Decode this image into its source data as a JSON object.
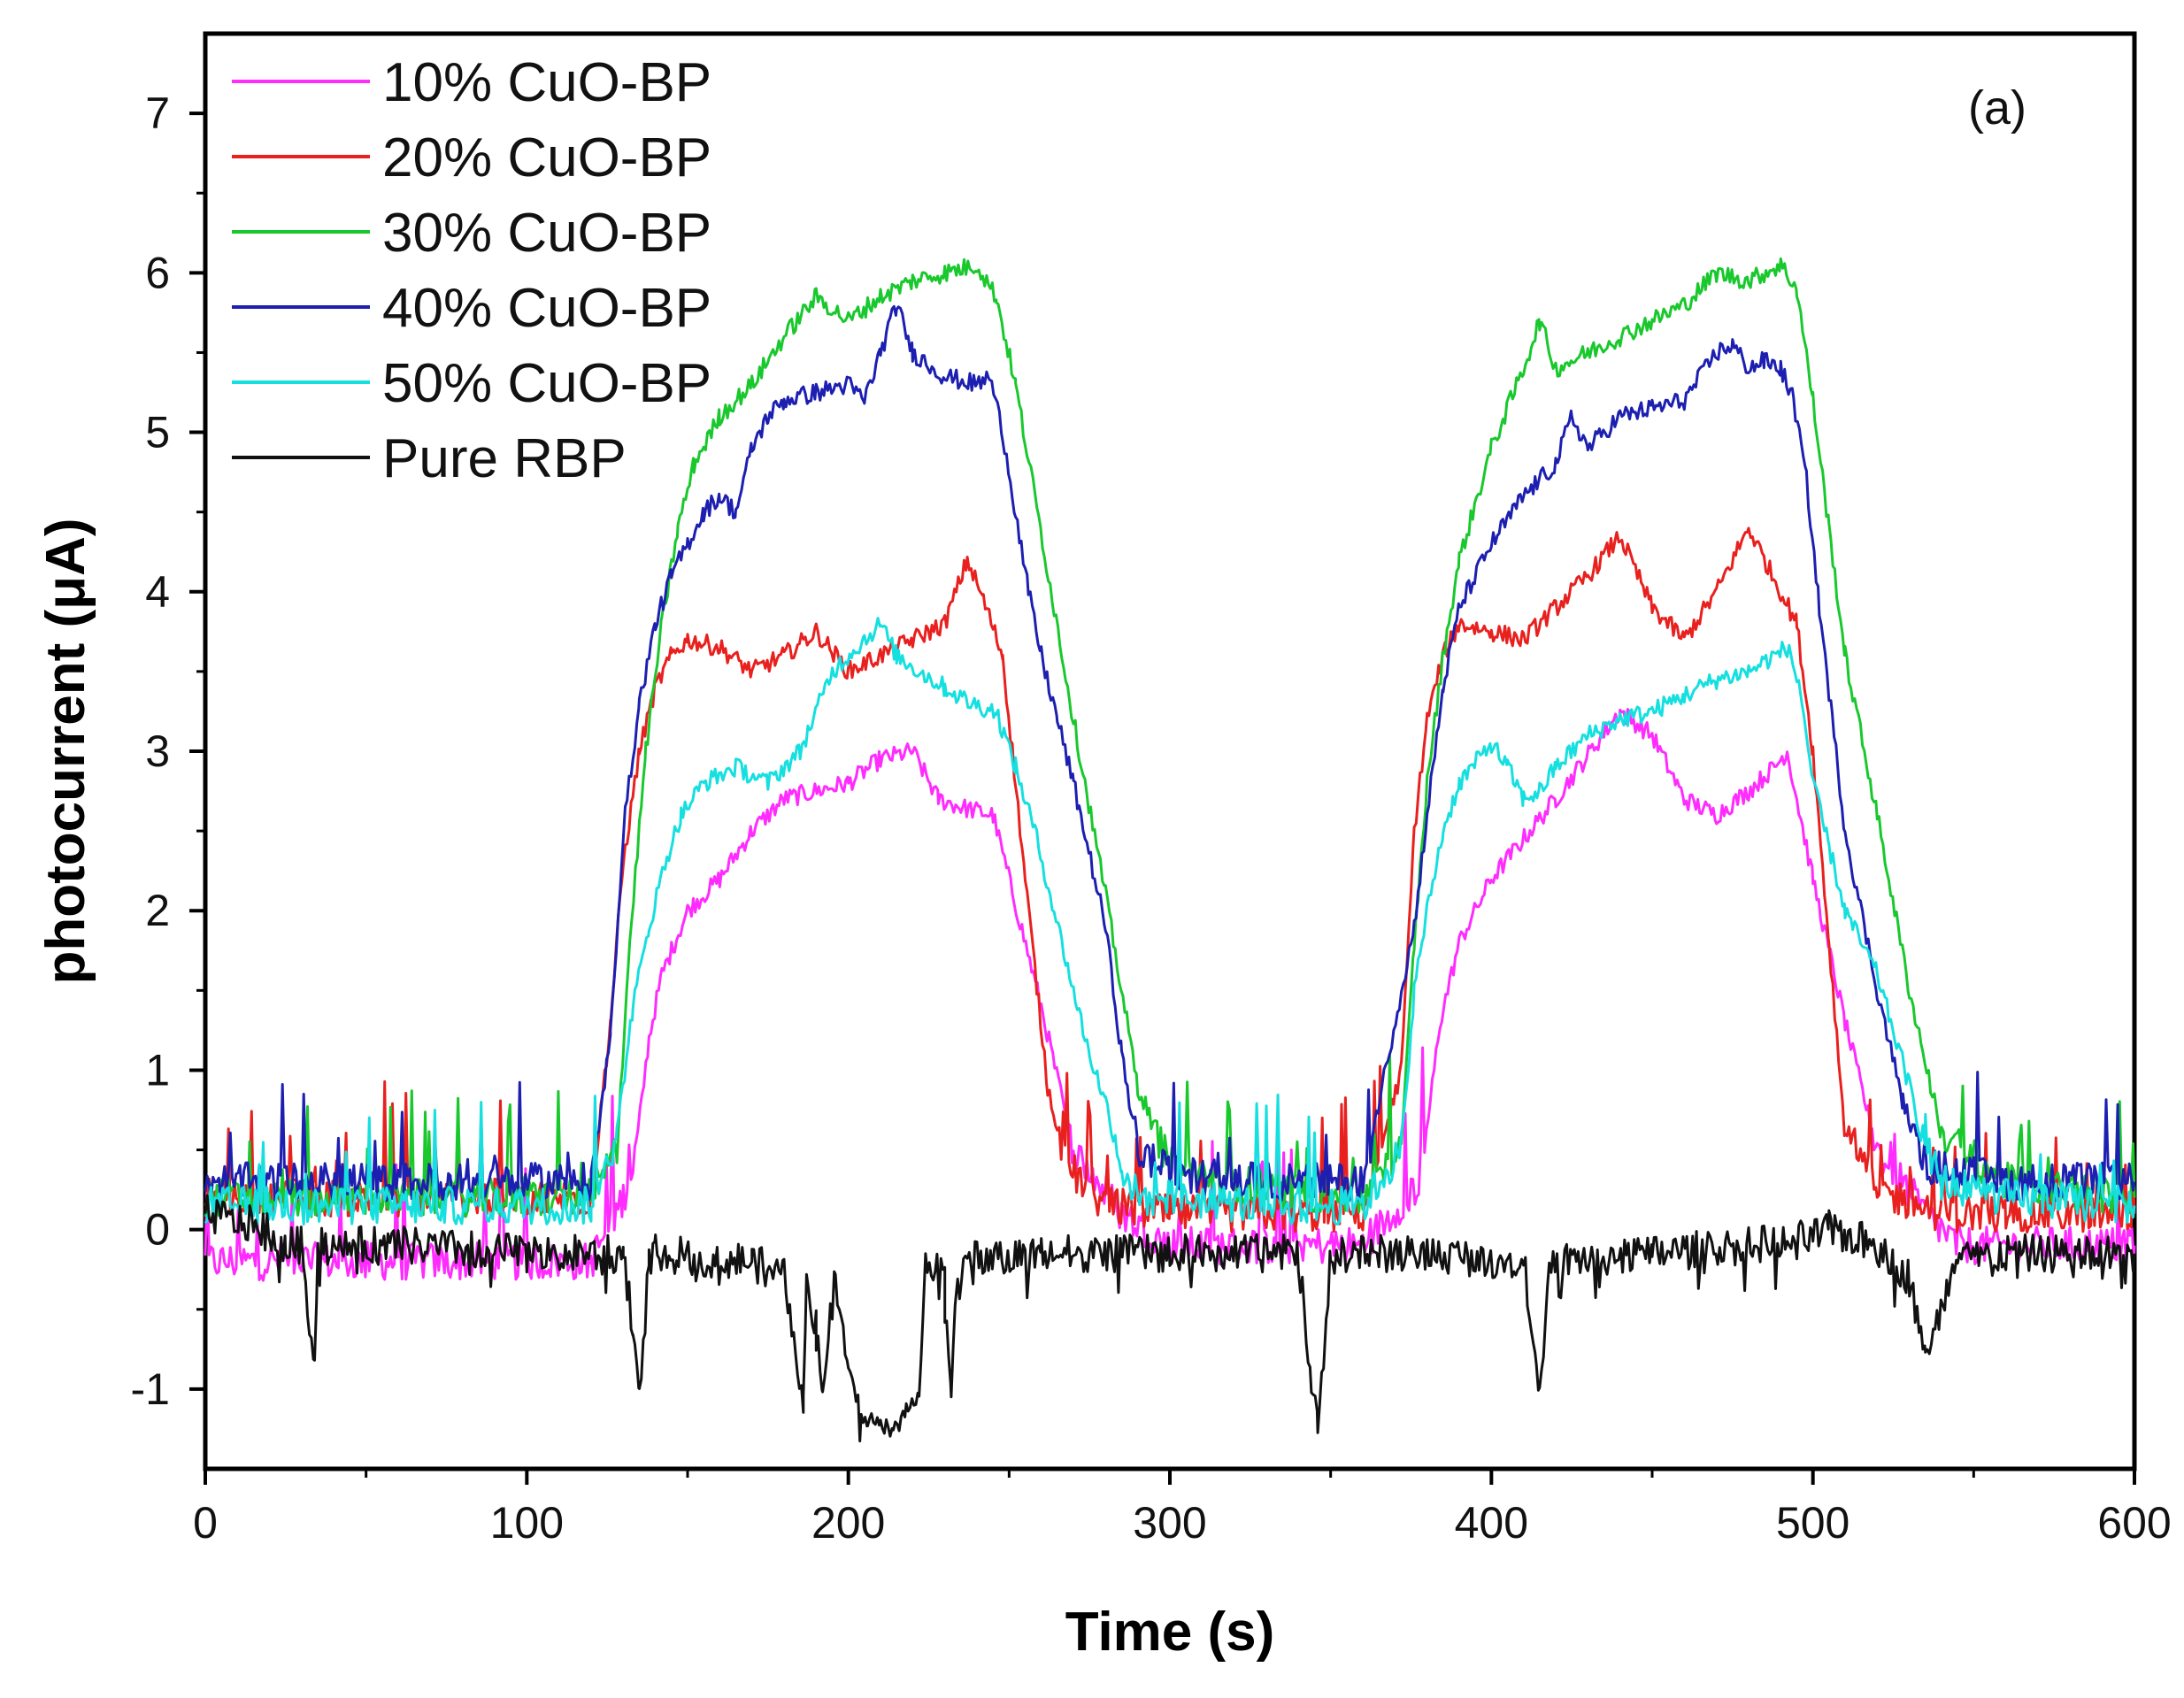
{
  "chart_data": {
    "type": "line",
    "panel_label": "(a)",
    "xlabel": "Time (s)",
    "ylabel": "photocurrent (μA)",
    "xlim": [
      0,
      600
    ],
    "ylim": [
      -1.5,
      7.5
    ],
    "xticks": [
      0,
      100,
      200,
      300,
      400,
      500,
      600
    ],
    "yticks": [
      -1,
      0,
      1,
      2,
      3,
      4,
      5,
      6,
      7
    ],
    "legend_position": "top-left",
    "series": [
      {
        "name": "10% CuO-BP",
        "color": "#ff2bff",
        "x": [
          0,
          60,
          120,
          130,
          134,
          138,
          142,
          146,
          150,
          160,
          170,
          180,
          200,
          210,
          220,
          228,
          235,
          245,
          260,
          270,
          285,
          300,
          330,
          360,
          378,
          384,
          390,
          400,
          420,
          440,
          450,
          460,
          470,
          480,
          488,
          492,
          500,
          510,
          520,
          535,
          545,
          560,
          580,
          600
        ],
        "y": [
          -0.2,
          -0.2,
          -0.2,
          0.2,
          0.5,
          1.2,
          1.6,
          1.8,
          2.0,
          2.2,
          2.5,
          2.7,
          2.8,
          2.95,
          3.0,
          2.7,
          2.65,
          2.6,
          1.4,
          0.5,
          0.1,
          -0.1,
          -0.1,
          -0.1,
          0.3,
          1.3,
          1.8,
          2.2,
          2.7,
          3.25,
          3.1,
          2.7,
          2.6,
          2.75,
          2.9,
          3.0,
          2.2,
          1.3,
          0.5,
          0.1,
          -0.1,
          -0.1,
          -0.1,
          -0.1
        ]
      },
      {
        "name": "20% CuO-BP",
        "color": "#e8201e",
        "x": [
          0,
          60,
          120,
          126,
          130,
          135,
          140,
          145,
          150,
          160,
          170,
          180,
          190,
          200,
          210,
          220,
          230,
          237,
          242,
          248,
          255,
          262,
          268,
          280,
          300,
          330,
          360,
          372,
          376,
          380,
          385,
          390,
          400,
          410,
          420,
          430,
          440,
          450,
          460,
          470,
          480,
          490,
          495,
          500,
          505,
          510,
          520,
          540,
          560,
          600
        ],
        "y": [
          0.2,
          0.2,
          0.2,
          1.3,
          2.3,
          3.0,
          3.4,
          3.6,
          3.7,
          3.65,
          3.5,
          3.6,
          3.75,
          3.5,
          3.6,
          3.7,
          3.8,
          4.2,
          3.95,
          3.6,
          2.2,
          0.9,
          0.4,
          0.15,
          0.1,
          0.1,
          0.1,
          1.0,
          2.5,
          3.2,
          3.6,
          3.8,
          3.75,
          3.7,
          3.9,
          4.1,
          4.35,
          3.9,
          3.7,
          4.0,
          4.4,
          4.0,
          3.8,
          3.0,
          1.8,
          0.6,
          0.25,
          0.1,
          0.1,
          0.1
        ]
      },
      {
        "name": "30% CuO-BP",
        "color": "#19c82d",
        "x": [
          0,
          60,
          120,
          128,
          132,
          137,
          142,
          147,
          152,
          160,
          170,
          180,
          190,
          200,
          210,
          220,
          230,
          240,
          246,
          252,
          258,
          264,
          270,
          280,
          290,
          300,
          330,
          360,
          372,
          376,
          380,
          385,
          390,
          400,
          410,
          415,
          420,
          430,
          440,
          450,
          460,
          470,
          480,
          490,
          495,
          500,
          505,
          510,
          520,
          530,
          540,
          560,
          600
        ],
        "y": [
          0.2,
          0.2,
          0.2,
          0.5,
          1.8,
          3.0,
          3.8,
          4.4,
          4.8,
          5.1,
          5.3,
          5.6,
          5.85,
          5.7,
          5.85,
          5.95,
          6.0,
          6.05,
          5.85,
          5.3,
          4.6,
          3.9,
          3.2,
          2.1,
          0.9,
          0.4,
          0.25,
          0.2,
          0.5,
          1.8,
          2.8,
          3.6,
          4.2,
          4.9,
          5.4,
          5.7,
          5.4,
          5.5,
          5.6,
          5.7,
          5.8,
          6.0,
          5.95,
          6.05,
          5.9,
          5.2,
          4.4,
          3.6,
          2.6,
          1.5,
          0.6,
          0.3,
          0.2
        ]
      },
      {
        "name": "40% CuO-BP",
        "color": "#1c1fb0",
        "x": [
          0,
          60,
          120,
          126,
          130,
          135,
          140,
          145,
          150,
          155,
          160,
          165,
          170,
          175,
          180,
          190,
          200,
          205,
          210,
          215,
          220,
          230,
          240,
          244,
          248,
          252,
          256,
          260,
          265,
          270,
          280,
          285,
          290,
          300,
          330,
          360,
          372,
          376,
          380,
          385,
          390,
          400,
          410,
          420,
          425,
          430,
          440,
          450,
          460,
          470,
          475,
          480,
          485,
          490,
          494,
          498,
          502,
          506,
          510,
          520,
          528,
          535,
          560,
          600
        ],
        "y": [
          0.3,
          0.3,
          0.3,
          1.2,
          2.5,
          3.3,
          3.8,
          4.1,
          4.3,
          4.5,
          4.6,
          4.5,
          4.9,
          5.1,
          5.2,
          5.25,
          5.3,
          5.2,
          5.5,
          5.8,
          5.5,
          5.35,
          5.3,
          5.35,
          5.0,
          4.5,
          4.0,
          3.6,
          3.2,
          2.8,
          1.9,
          1.1,
          0.5,
          0.35,
          0.3,
          0.3,
          1.5,
          1.9,
          2.6,
          3.4,
          3.9,
          4.3,
          4.6,
          4.8,
          5.1,
          4.9,
          5.1,
          5.15,
          5.2,
          5.5,
          5.55,
          5.4,
          5.45,
          5.4,
          5.2,
          4.7,
          3.9,
          3.2,
          2.5,
          1.5,
          0.8,
          0.4,
          0.3,
          0.3
        ]
      },
      {
        "name": "50% CuO-BP",
        "color": "#16dfe0",
        "x": [
          0,
          60,
          120,
          128,
          133,
          138,
          143,
          148,
          155,
          165,
          175,
          185,
          195,
          205,
          210,
          215,
          222,
          230,
          238,
          246,
          252,
          258,
          264,
          270,
          275,
          280,
          285,
          290,
          300,
          330,
          360,
          372,
          376,
          380,
          385,
          390,
          400,
          405,
          410,
          415,
          420,
          430,
          440,
          450,
          460,
          470,
          480,
          488,
          492,
          496,
          500,
          505,
          510,
          520,
          530,
          535,
          540,
          560,
          600
        ],
        "y": [
          0.15,
          0.15,
          0.15,
          0.6,
          1.4,
          1.9,
          2.3,
          2.6,
          2.8,
          2.9,
          2.8,
          3.0,
          3.5,
          3.7,
          3.8,
          3.6,
          3.5,
          3.4,
          3.3,
          3.25,
          2.9,
          2.5,
          2.0,
          1.5,
          1.1,
          0.8,
          0.4,
          0.2,
          0.2,
          0.15,
          0.15,
          0.5,
          1.5,
          2.0,
          2.5,
          2.8,
          3.05,
          2.9,
          2.7,
          2.75,
          2.9,
          3.1,
          3.2,
          3.25,
          3.35,
          3.45,
          3.5,
          3.6,
          3.65,
          3.4,
          2.8,
          2.4,
          2.0,
          1.6,
          0.9,
          0.5,
          0.3,
          0.2,
          0.15
        ]
      },
      {
        "name": "Pure RBP",
        "color": "#111111",
        "x": [
          0,
          20,
          25,
          30,
          34,
          35,
          40,
          60,
          100,
          130,
          133,
          135,
          138,
          140,
          170,
          180,
          186,
          187,
          190,
          192,
          196,
          200,
          204,
          206,
          210,
          214,
          218,
          222,
          224,
          230,
          232,
          234,
          260,
          300,
          340,
          344,
          346,
          348,
          350,
          380,
          410,
          414,
          415,
          418,
          450,
          480,
          500,
          505,
          520,
          530,
          535,
          545,
          560,
          600
        ],
        "y": [
          0.1,
          0.0,
          -0.1,
          -0.1,
          -0.85,
          -0.1,
          -0.1,
          -0.1,
          -0.15,
          -0.15,
          -0.6,
          -1.05,
          -0.2,
          -0.15,
          -0.2,
          -0.3,
          -1.1,
          -0.3,
          -0.6,
          -1.0,
          -0.3,
          -0.9,
          -1.15,
          -1.2,
          -1.2,
          -1.25,
          -1.15,
          -1.0,
          -0.2,
          -0.3,
          -1.05,
          -0.2,
          -0.15,
          -0.15,
          -0.15,
          -1.0,
          -1.15,
          -0.8,
          -0.15,
          -0.15,
          -0.2,
          -0.8,
          -1.05,
          -0.2,
          -0.15,
          -0.1,
          -0.05,
          0.0,
          -0.1,
          -0.3,
          -0.8,
          -0.2,
          -0.15,
          -0.15
        ]
      }
    ]
  }
}
